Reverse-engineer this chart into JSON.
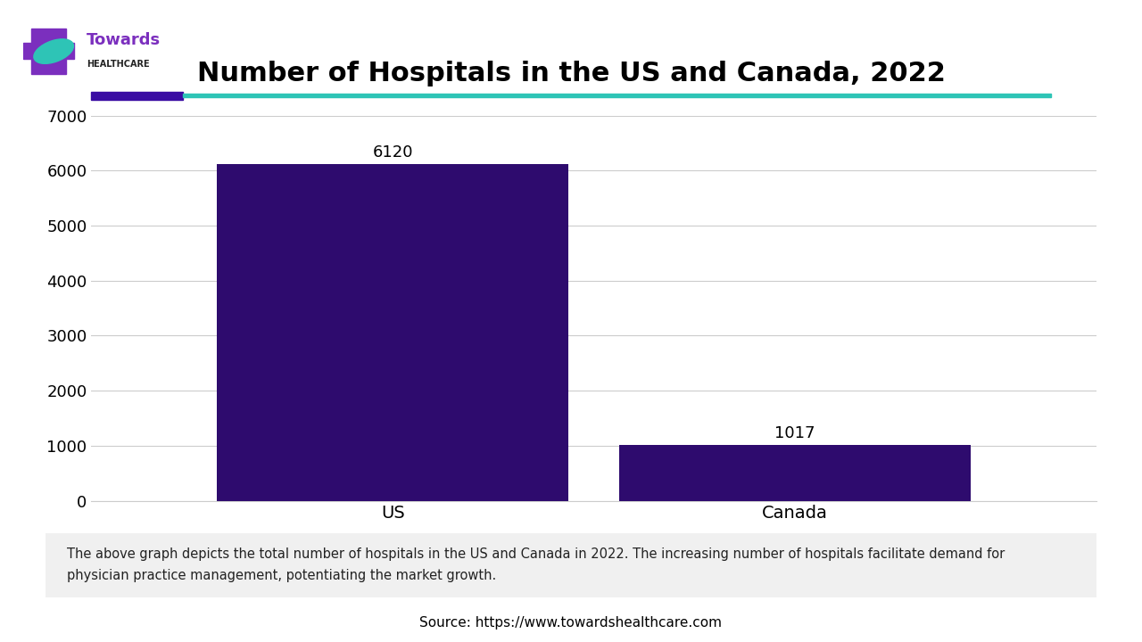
{
  "title": "Number of Hospitals in the US and Canada, 2022",
  "categories": [
    "US",
    "Canada"
  ],
  "values": [
    6120,
    1017
  ],
  "bar_color": "#2E0B6E",
  "bar_width": 0.35,
  "ylim": [
    0,
    7000
  ],
  "yticks": [
    0,
    1000,
    2000,
    3000,
    4000,
    5000,
    6000,
    7000
  ],
  "background_color": "#ffffff",
  "title_fontsize": 22,
  "tick_fontsize": 13,
  "label_fontsize": 14,
  "annotation_fontsize": 13,
  "caption_text": "The above graph depicts the total number of hospitals in the US and Canada in 2022. The increasing number of hospitals facilitate demand for\nphysician practice management, potentiating the market growth.",
  "source_text": "Source: https://www.towardshealthcare.com",
  "header_bar_color1": "#3A0CA3",
  "header_bar_color2": "#2EC4B6",
  "caption_bg_color": "#F0F0F0",
  "grid_color": "#cccccc",
  "cross_color": "#7B2FBE",
  "teal_color": "#2EC4B6",
  "logo_towards_color": "#7B2FBE",
  "logo_healthcare_color": "#222222"
}
